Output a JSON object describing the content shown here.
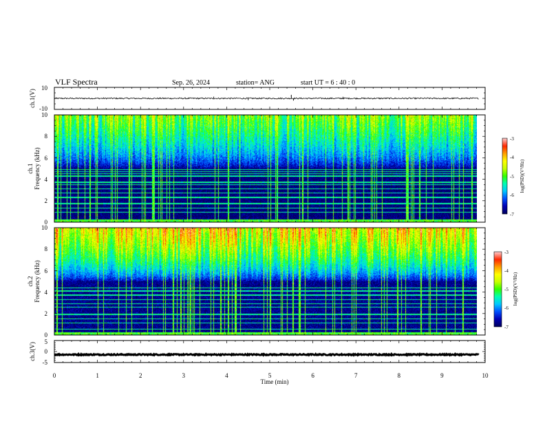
{
  "header": {
    "title": "VLF Spectra",
    "date": "Sep. 26, 2024",
    "station": "station= ANG",
    "start": "start  UT =   6  : 40 : 0"
  },
  "colors": {
    "background": "#ffffff",
    "axis": "#000000",
    "colormap": [
      "#000060",
      "#0000b4",
      "#0050ff",
      "#00c8ff",
      "#00ffb4",
      "#32ff00",
      "#c8ff00",
      "#ffff00",
      "#ffa000",
      "#ff2800",
      "#ffc8c8"
    ]
  },
  "chart_data": [
    {
      "type": "line",
      "id": "ch1-waveform",
      "ylabel": "ch.1(V)",
      "ylim": [
        -10,
        10
      ],
      "y_ticks": [
        "10",
        "-10"
      ],
      "xlim": [
        0,
        10
      ],
      "x_end": 9.85,
      "baseline": 0,
      "noise_amplitude": 0.6,
      "spikes": [
        {
          "x": 3.7,
          "y": 1.5
        },
        {
          "x": 4.5,
          "y": -1.6
        },
        {
          "x": 5.5,
          "y": 3.2
        },
        {
          "x": 5.55,
          "y": -2.0
        },
        {
          "x": 6.7,
          "y": 1.4
        }
      ]
    },
    {
      "type": "heatmap",
      "id": "ch1-spectrogram",
      "ylabel_top": "ch.1",
      "ylabel_bottom": "Frequency (kHz)",
      "ylim": [
        0,
        10
      ],
      "y_ticks": [
        "0",
        "2",
        "4",
        "6",
        "8",
        "10"
      ],
      "xlim": [
        0,
        10
      ],
      "x_end": 9.85,
      "value_range": [
        -7,
        -3
      ],
      "high_band_level": -4.4,
      "noise_floor": -6.9,
      "narrowband_lines_khz": [
        0.9,
        1.3,
        1.7,
        2.3,
        2.7,
        3.1,
        3.5,
        3.7,
        4.3,
        4.5,
        4.7,
        4.9
      ],
      "colorbar": {
        "ticks": [
          "-3",
          "-4",
          "-5",
          "-6",
          "-7"
        ],
        "label": "log(PSD)(V²/Hz)"
      }
    },
    {
      "type": "heatmap",
      "id": "ch2-spectrogram",
      "ylabel_top": "ch.2",
      "ylabel_bottom": "Frequency (kHz)",
      "ylim": [
        0,
        10
      ],
      "y_ticks": [
        "0",
        "2",
        "4",
        "6",
        "8",
        "10"
      ],
      "xlim": [
        0,
        10
      ],
      "x_end": 9.85,
      "value_range": [
        -7,
        -3
      ],
      "high_band_level": -3.6,
      "noise_floor": -6.8,
      "narrowband_lines_khz": [
        0.5,
        1.1,
        1.5,
        1.9,
        2.6,
        2.9,
        3.3,
        3.7,
        4.1,
        4.4
      ],
      "colorbar": {
        "ticks": [
          "-3",
          "-4",
          "-5",
          "-6",
          "-7"
        ],
        "label": "log(PSD)(V²/Hz)"
      }
    },
    {
      "type": "line",
      "id": "ch3-waveform",
      "ylabel": "ch.3(V)",
      "ylim": [
        -5,
        5
      ],
      "y_ticks": [
        "5",
        "0",
        "-5"
      ],
      "xlim": [
        0,
        10
      ],
      "x_end": 9.85,
      "baseline": -1.4,
      "noise_amplitude": 0.25,
      "spikes": []
    }
  ],
  "x_axis": {
    "label": "Time (min)",
    "ticks": [
      "0",
      "1",
      "2",
      "3",
      "4",
      "5",
      "6",
      "7",
      "8",
      "9",
      "10"
    ]
  }
}
